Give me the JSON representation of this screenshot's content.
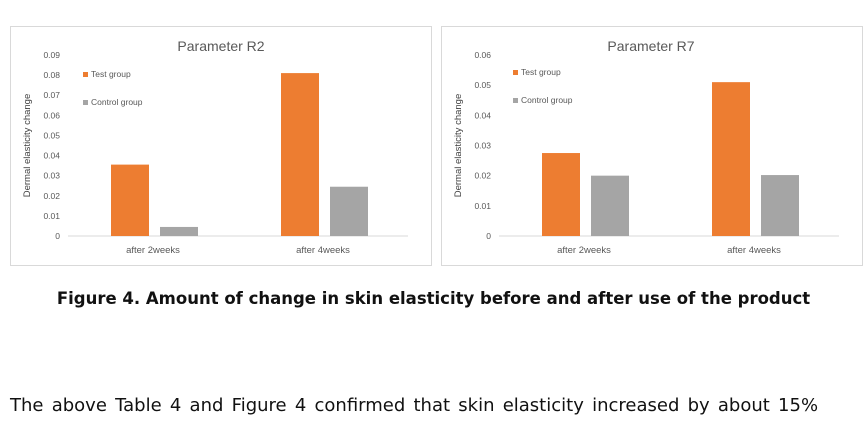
{
  "chart_data": [
    {
      "type": "bar",
      "title": "Parameter R2",
      "ylabel": "Dermal elasticity change",
      "xlabel": "",
      "categories": [
        "after 2weeks",
        "after 4weeks"
      ],
      "ylim": [
        0,
        0.09
      ],
      "yticks": [
        "0",
        "0.01",
        "0.02",
        "0.03",
        "0.04",
        "0.05",
        "0.06",
        "0.07",
        "0.08",
        "0.09"
      ],
      "legend_position": "top-left",
      "series": [
        {
          "name": "Test group",
          "color": "#ed7d31",
          "values": [
            0.0355,
            0.081
          ]
        },
        {
          "name": "Control group",
          "color": "#a5a5a5",
          "values": [
            0.0045,
            0.0245
          ]
        }
      ]
    },
    {
      "type": "bar",
      "title": "Parameter R7",
      "ylabel": "Dermal elasticity change",
      "xlabel": "",
      "categories": [
        "after 2weeks",
        "after 4weeks"
      ],
      "ylim": [
        0,
        0.06
      ],
      "yticks": [
        "0",
        "0.01",
        "0.02",
        "0.03",
        "0.04",
        "0.05",
        "0.06"
      ],
      "legend_position": "top-left",
      "series": [
        {
          "name": "Test group",
          "color": "#ed7d31",
          "values": [
            0.0275,
            0.051
          ]
        },
        {
          "name": "Control group",
          "color": "#a5a5a5",
          "values": [
            0.02,
            0.0202
          ]
        }
      ]
    }
  ],
  "caption": "Figure 4. Amount of change in skin elasticity before and after use of the product",
  "body_text": "The above Table 4 and Figure 4 confirmed that skin elasticity increased by about 15%"
}
